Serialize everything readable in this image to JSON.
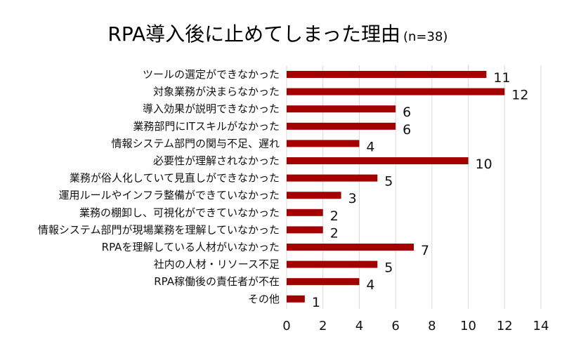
{
  "chart_data": {
    "type": "bar",
    "orientation": "horizontal",
    "title": "RPA導入後に止めてしまった理由",
    "subtitle": "(n=38)",
    "categories": [
      "ツールの選定ができなかった",
      "対象業務が決まらなかった",
      "導入効果が説明できなかった",
      "業務部門にITスキルがなかった",
      "情報システム部門の関与不足、遅れ",
      "必要性が理解されなかった",
      "業務が俗人化していて見直しができなかった",
      "運用ルールやインフラ整備ができていなかった",
      "業務の棚卸し、可視化ができていなかった",
      "情報システム部門が現場業務を理解していなかった",
      "RPAを理解している人材がいなかった",
      "社内の人材・リソース不足",
      "RPA稼働後の責任者が不在",
      "その他"
    ],
    "values": [
      11,
      12,
      6,
      6,
      4,
      10,
      5,
      3,
      2,
      2,
      7,
      5,
      4,
      1
    ],
    "xlim": [
      0,
      14
    ],
    "xticks": [
      0,
      2,
      4,
      6,
      8,
      10,
      12,
      14
    ],
    "grid": "vertical",
    "legend": "none",
    "bar_color": "#a50000",
    "grid_color": "#d9d9d9",
    "text_color": "#111111"
  }
}
